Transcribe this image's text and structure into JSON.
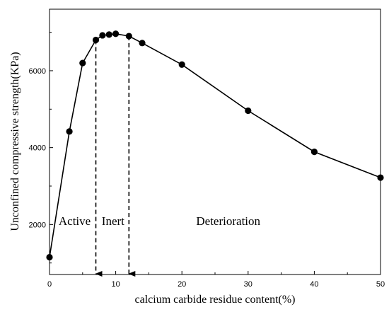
{
  "chart_data": {
    "type": "line",
    "xlabel": "calcium carbide residue content(%)",
    "ylabel": "Unconfined compressive strength(KPa)",
    "xlim": [
      0,
      50
    ],
    "ylim": [
      700,
      7600
    ],
    "x_ticks": [
      0,
      10,
      20,
      30,
      40,
      50
    ],
    "y_ticks": [
      2000,
      4000,
      6000
    ],
    "grid": false,
    "series": [
      {
        "x": [
          0,
          3,
          5,
          7,
          8,
          9,
          10,
          12,
          14,
          20,
          30,
          40,
          50
        ],
        "y": [
          1150,
          4420,
          6200,
          6800,
          6920,
          6940,
          6960,
          6900,
          6720,
          6160,
          4960,
          3890,
          3220
        ]
      }
    ],
    "boundaries": [
      7,
      12
    ],
    "regions": [
      {
        "label": "Active",
        "x": 3.8
      },
      {
        "label": "Inert",
        "x": 9.6
      },
      {
        "label": "Deterioration",
        "x": 27
      }
    ]
  }
}
